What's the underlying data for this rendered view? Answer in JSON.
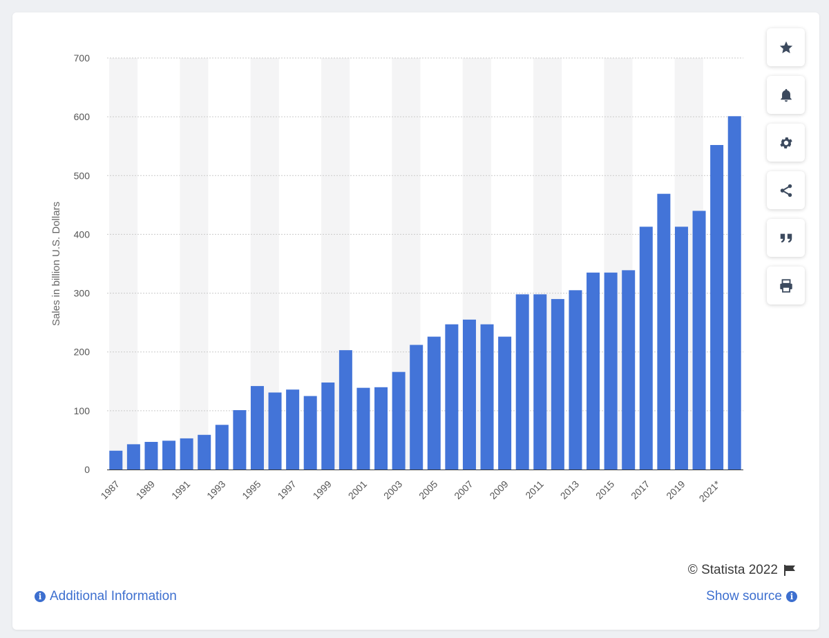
{
  "chart_data": {
    "type": "bar",
    "title": "",
    "xlabel": "",
    "ylabel": "Sales in billion U.S. Dollars",
    "ylim": [
      0,
      700
    ],
    "yticks": [
      0,
      100,
      200,
      300,
      400,
      500,
      600,
      700
    ],
    "grid": true,
    "categories": [
      "1987",
      "1988",
      "1989",
      "1990",
      "1991",
      "1992",
      "1993",
      "1994",
      "1995",
      "1996",
      "1997",
      "1998",
      "1999",
      "2000",
      "2001",
      "2002",
      "2003",
      "2004",
      "2005",
      "2006",
      "2007",
      "2008",
      "2009",
      "2010",
      "2011",
      "2012",
      "2013",
      "2014",
      "2015",
      "2016",
      "2017",
      "2018",
      "2019",
      "2020",
      "2021*",
      "2022*"
    ],
    "shown_tick_labels": [
      "1987",
      "1989",
      "1991",
      "1993",
      "1995",
      "1997",
      "1999",
      "2001",
      "2003",
      "2005",
      "2007",
      "2009",
      "2011",
      "2013",
      "2015",
      "2017",
      "2019",
      "2021*"
    ],
    "values": [
      32,
      43,
      47,
      49,
      53,
      59,
      76,
      101,
      142,
      131,
      136,
      125,
      148,
      203,
      139,
      140,
      166,
      212,
      226,
      247,
      255,
      247,
      226,
      298,
      298,
      290,
      305,
      335,
      335,
      339,
      413,
      469,
      413,
      440,
      552,
      601
    ],
    "bar_color": "#4374d8"
  },
  "footer": {
    "copyright": "© Statista 2022",
    "additional_info": "Additional Information",
    "show_source": "Show source"
  },
  "toolbar": {
    "icons": [
      "star-icon",
      "bell-icon",
      "gear-icon",
      "share-icon",
      "quote-icon",
      "print-icon"
    ]
  }
}
